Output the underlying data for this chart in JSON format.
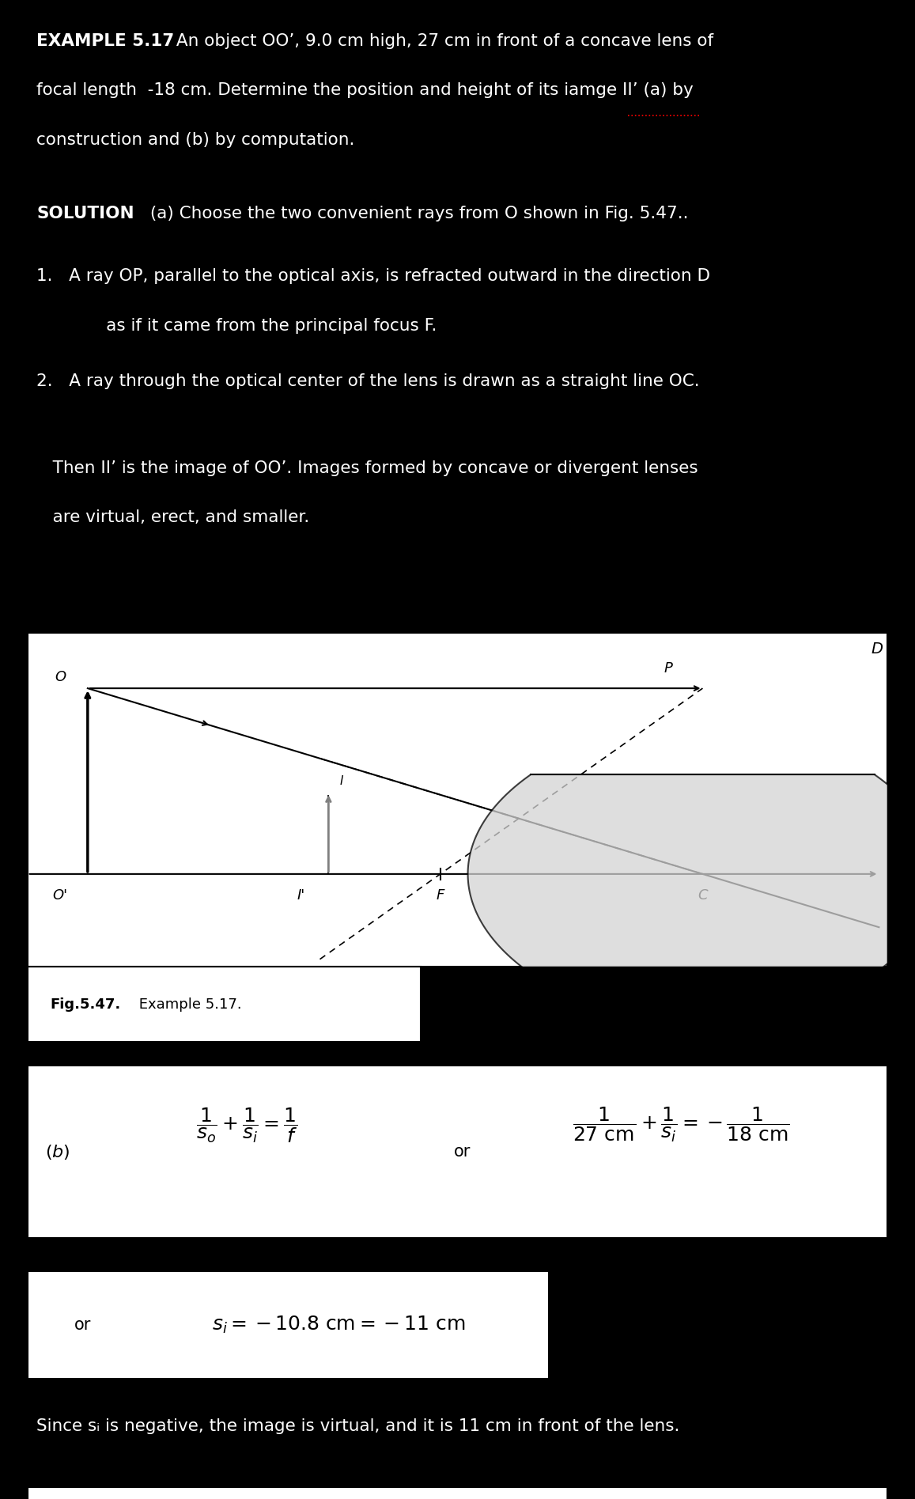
{
  "bg_color": "#000000",
  "text_color": "#ffffff",
  "box_bg": "#ffffff",
  "box_text": "#000000",
  "title_bold": "EXAMPLE 5.17",
  "title_rest": " An object OO’, 9.0 cm high, 27 cm in front of a concave lens of",
  "title_line2": "focal length  -18 cm. Determine the position and height of its iamge II’ (a) by",
  "title_line3": "construction and (b) by computation.",
  "solution_bold": "SOLUTION",
  "solution_rest": " (a) Choose the two convenient rays from O shown in Fig. 5.47..",
  "item1a": "1.   A ray OP, parallel to the optical axis, is refracted outward in the direction D",
  "item1b": "      as if it came from the principal focus F.",
  "item2": "2.   A ray through the optical center of the lens is drawn as a straight line OC.",
  "then1": "   Then II’ is the image of OO’. Images formed by concave or divergent lenses",
  "then2": "   are virtual, erect, and smaller.",
  "fig_caption_bold": "Fig.5.47.",
  "fig_caption_rest": " Example 5.17.",
  "since_text": "Since sᵢ is negative, the image is virtual, and it is 11 cm in front of the lens.",
  "fontsize_main": 15.5,
  "fontsize_eq": 18,
  "fontsize_caption": 13
}
